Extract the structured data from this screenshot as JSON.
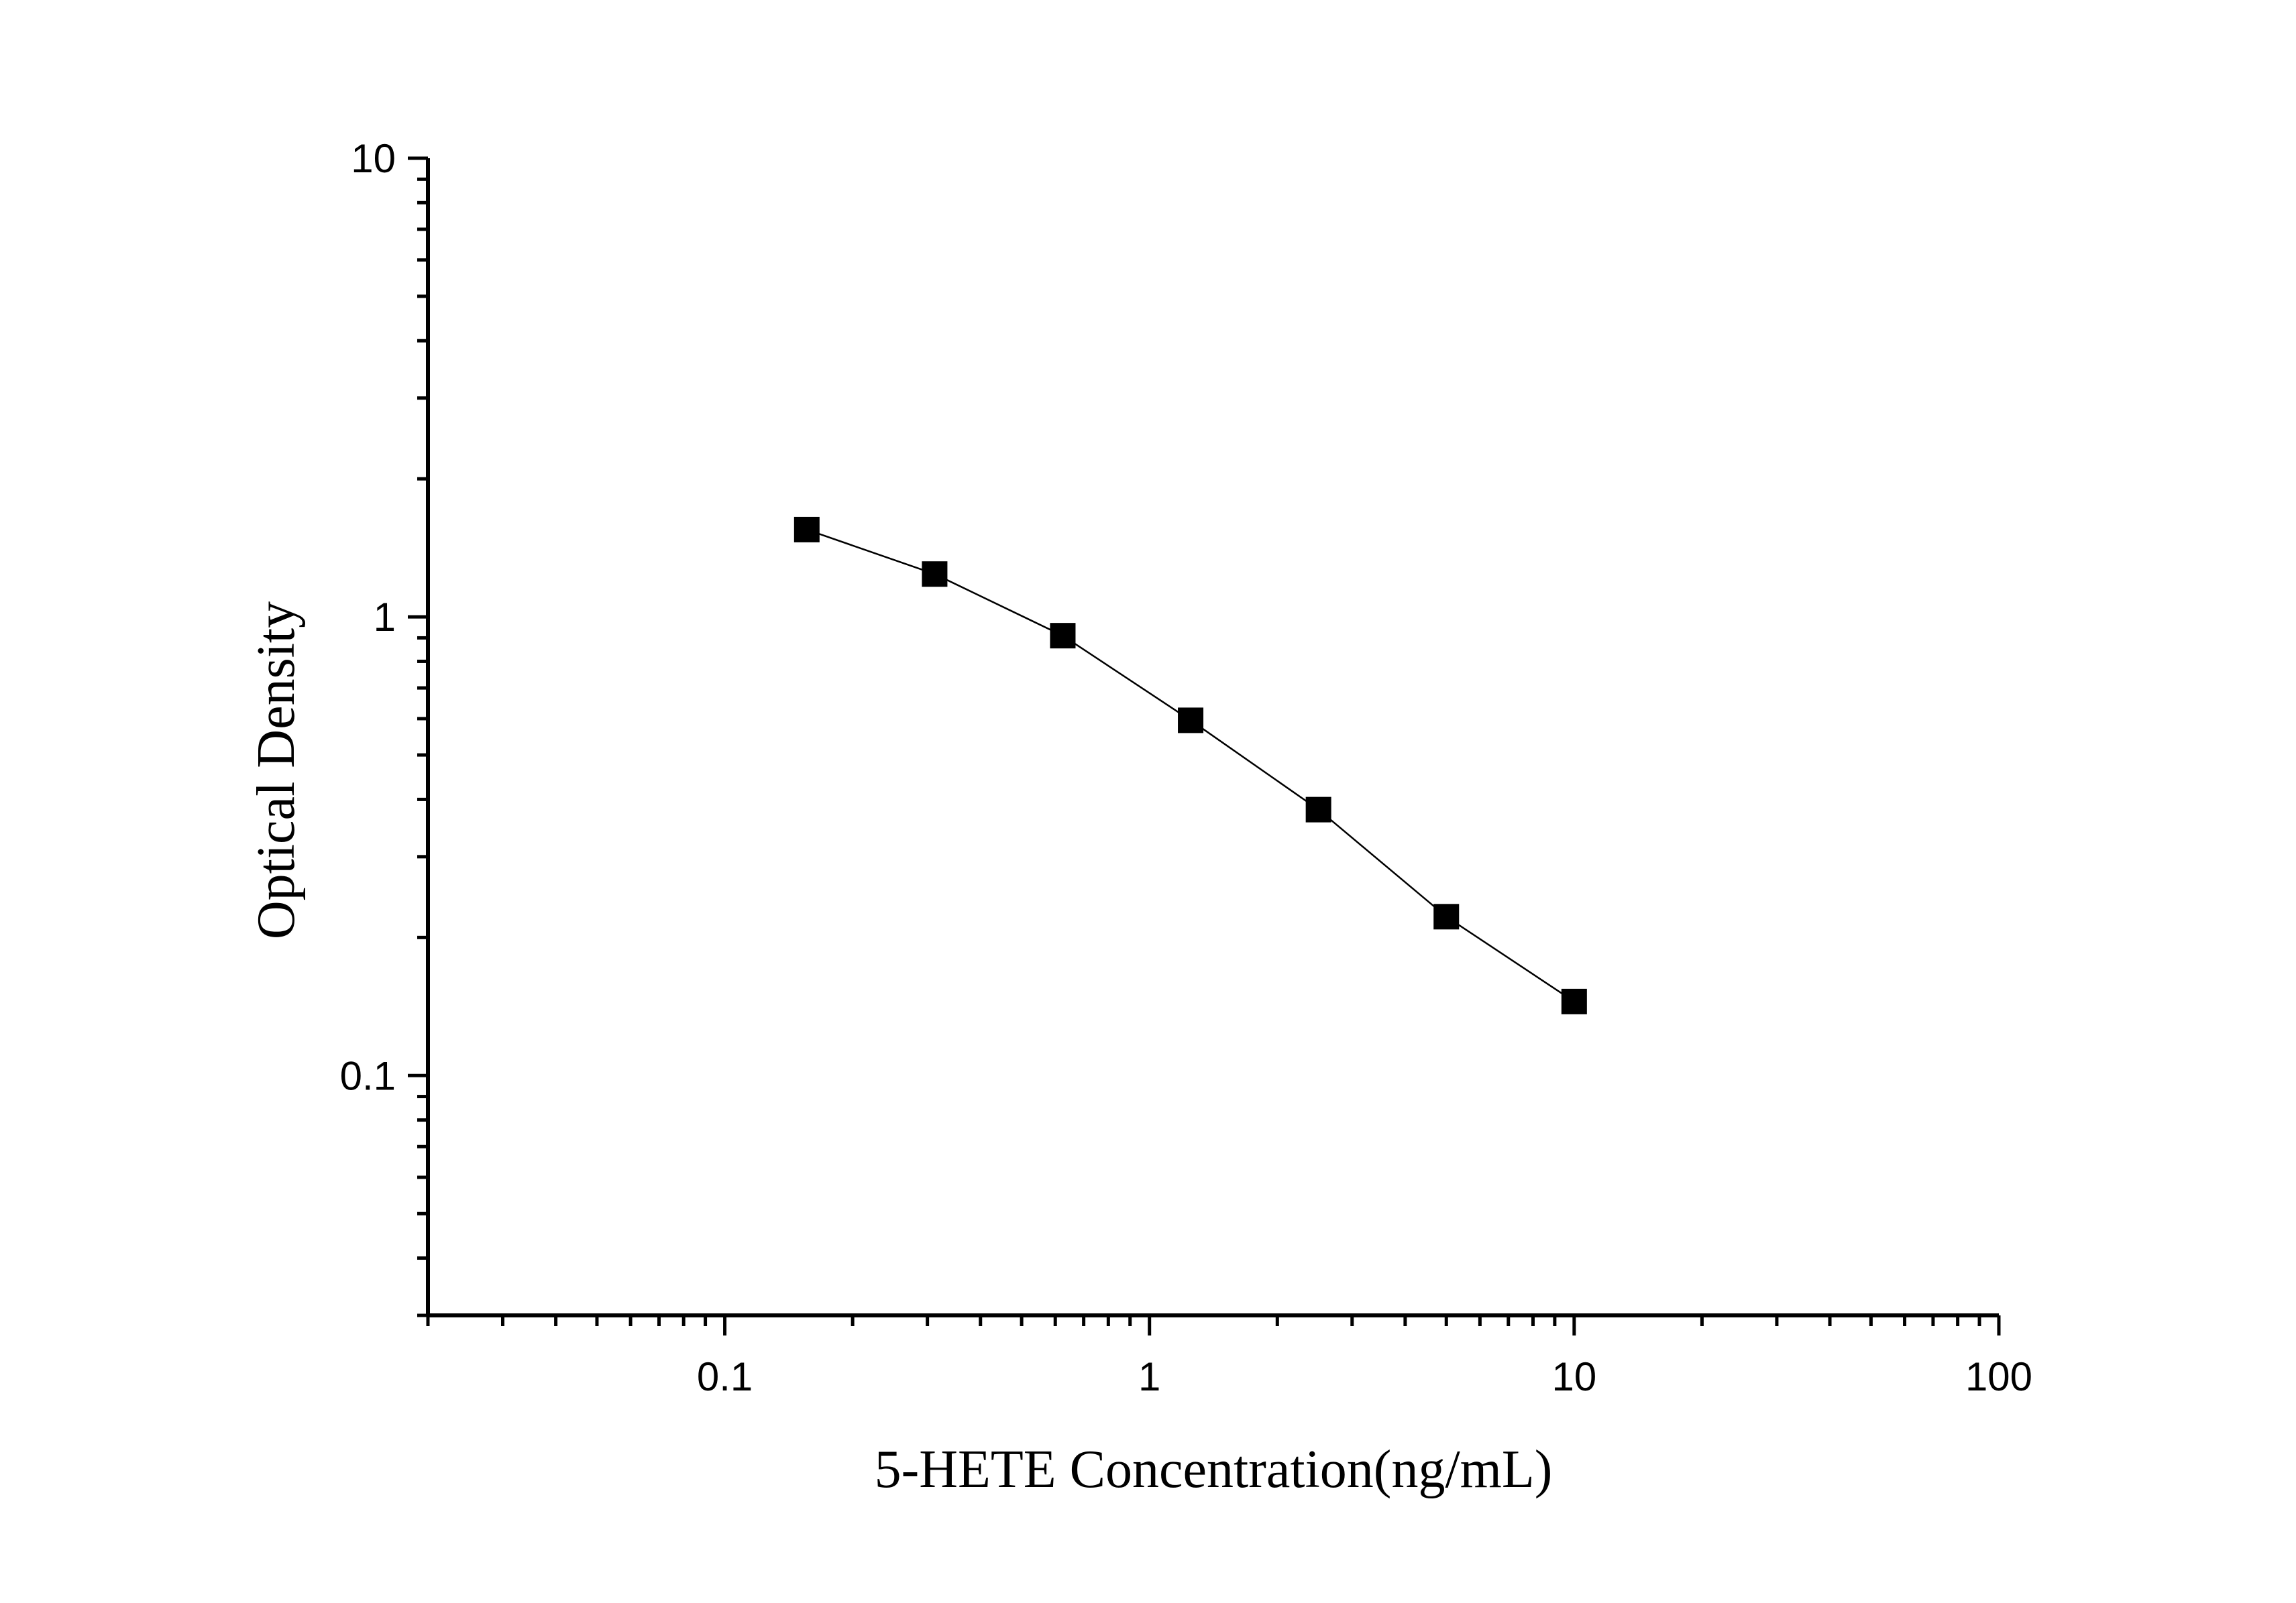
{
  "chart_data": {
    "type": "scatter",
    "xlabel": "5-HETE Concentration(ng/mL)",
    "ylabel": "Optical Density",
    "x_scale": "log",
    "y_scale": "log",
    "xlim": [
      0.02,
      100
    ],
    "ylim": [
      0.03,
      10
    ],
    "x_ticks": [
      {
        "value": 0.1,
        "label": "0.1"
      },
      {
        "value": 1,
        "label": "1"
      },
      {
        "value": 10,
        "label": "10"
      },
      {
        "value": 100,
        "label": "100"
      }
    ],
    "y_ticks": [
      {
        "value": 0.1,
        "label": "0.1"
      },
      {
        "value": 1,
        "label": "1"
      },
      {
        "value": 10,
        "label": "10"
      }
    ],
    "grid": false,
    "marker": "square",
    "line": "connected",
    "color": "#000000",
    "series": [
      {
        "x": [
          0.156,
          0.312,
          0.625,
          1.25,
          2.5,
          5,
          10
        ],
        "y": [
          1.55,
          1.24,
          0.91,
          0.595,
          0.38,
          0.222,
          0.145
        ]
      }
    ]
  }
}
